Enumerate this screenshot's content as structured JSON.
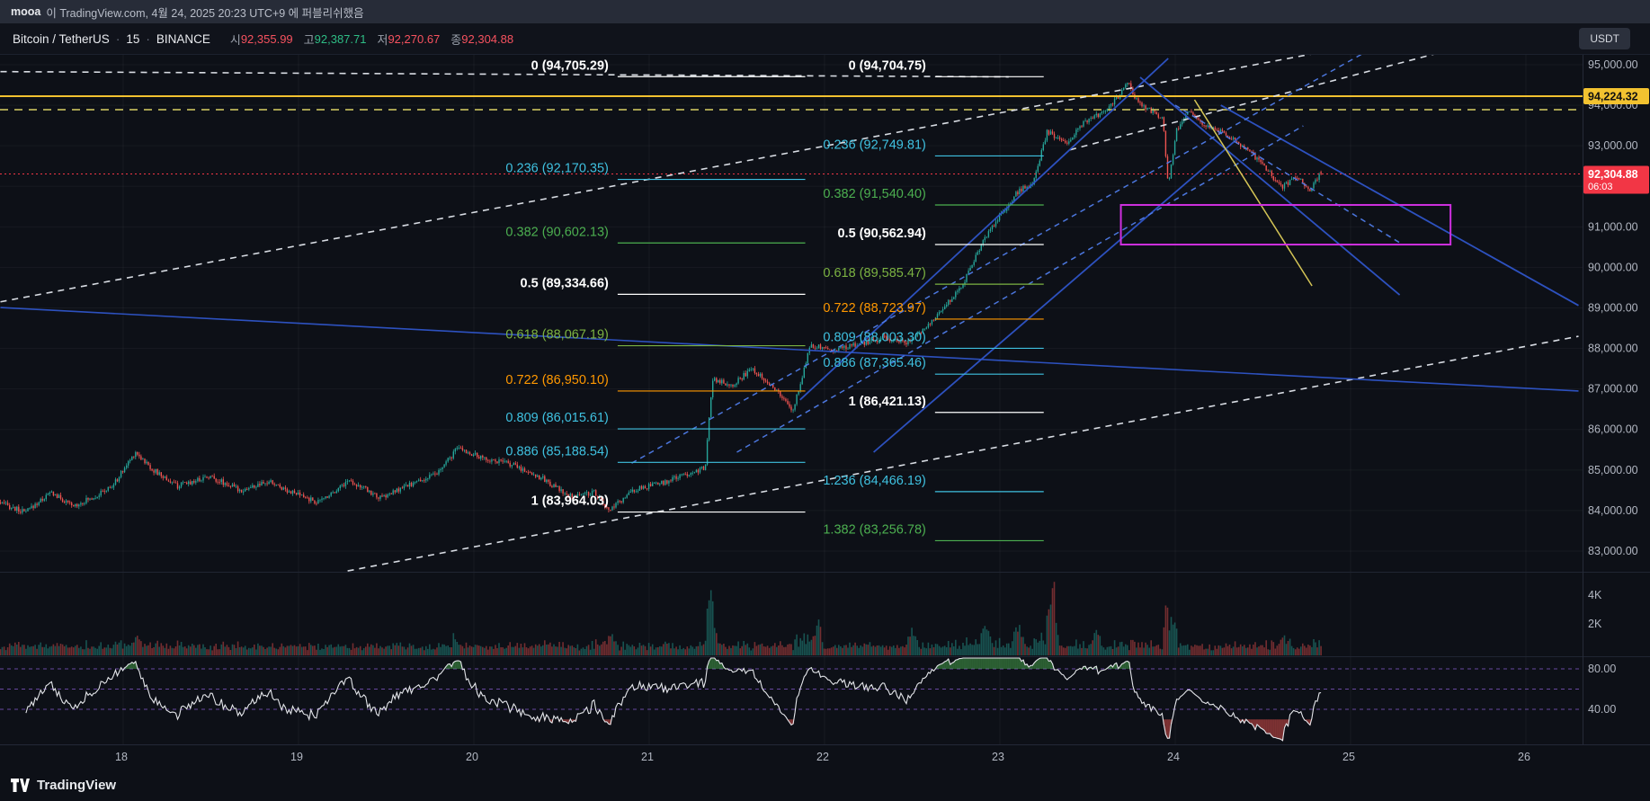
{
  "publish_bar": {
    "author": "mooa",
    "text": "이 TradingView.com, 4월 24, 2025 20:23 UTC+9 에 퍼블리쉬했음"
  },
  "symbol_bar": {
    "title": "Bitcoin / TetherUS",
    "separator": "·",
    "interval": "15",
    "exchange": "BINANCE",
    "ohlc": [
      {
        "label": "시",
        "value": "92,355.99",
        "color": "#f7525f"
      },
      {
        "label": "고",
        "value": "92,387.71",
        "color": "#2ebd85"
      },
      {
        "label": "저",
        "value": "92,270.67",
        "color": "#f7525f"
      },
      {
        "label": "종",
        "value": "92,304.88",
        "color": "#f7525f"
      }
    ],
    "currency_button": "USDT"
  },
  "price_axis": {
    "labels": [
      {
        "text": "95,000.00",
        "value": 95000
      },
      {
        "text": "94,000.00",
        "value": 94000
      },
      {
        "text": "93,000.00",
        "value": 93000
      },
      {
        "text": "92,000.00",
        "value": 92000
      },
      {
        "text": "91,000.00",
        "value": 91000
      },
      {
        "text": "90,000.00",
        "value": 90000
      },
      {
        "text": "89,000.00",
        "value": 89000
      },
      {
        "text": "88,000.00",
        "value": 88000
      },
      {
        "text": "87,000.00",
        "value": 87000
      },
      {
        "text": "86,000.00",
        "value": 86000
      },
      {
        "text": "85,000.00",
        "value": 85000
      },
      {
        "text": "84,000.00",
        "value": 84000
      },
      {
        "text": "83,000.00",
        "value": 83000
      }
    ],
    "yellow_badge": {
      "text": "94,224.32",
      "value": 94224.32,
      "color": "#f2c230"
    },
    "price_badge": {
      "text": "92,304.88",
      "value": 92304.88,
      "countdown": "06:03",
      "color": "#f23645"
    },
    "volume_labels": [
      {
        "text": "4K",
        "value": 4000
      },
      {
        "text": "2K",
        "value": 2000
      }
    ],
    "osc_labels": [
      {
        "text": "80.00",
        "value": 80
      },
      {
        "text": "40.00",
        "value": 40
      }
    ]
  },
  "time_axis": {
    "labels": [
      "18",
      "19",
      "20",
      "21",
      "22",
      "23",
      "24",
      "25",
      "26"
    ]
  },
  "footer": {
    "brand": "TradingView"
  },
  "chart_data": {
    "type": "candlestick",
    "symbol": "Bitcoin / TetherUS",
    "exchange": "BINANCE",
    "interval_minutes": 15,
    "last": {
      "open": 92355.99,
      "high": 92387.71,
      "low": 92270.67,
      "close": 92304.88
    },
    "x_range_days": [
      17.3,
      26.32
    ],
    "candles_end_day": 24.84,
    "price_axis_range": [
      82490,
      95244
    ],
    "anchors": [
      [
        17.3,
        84200
      ],
      [
        17.45,
        83950
      ],
      [
        17.6,
        84450
      ],
      [
        17.72,
        84100
      ],
      [
        17.85,
        84350
      ],
      [
        17.95,
        84600
      ],
      [
        18.08,
        85450
      ],
      [
        18.18,
        85000
      ],
      [
        18.32,
        84600
      ],
      [
        18.5,
        84850
      ],
      [
        18.68,
        84500
      ],
      [
        18.85,
        84700
      ],
      [
        19.0,
        84400
      ],
      [
        19.12,
        84200
      ],
      [
        19.3,
        84750
      ],
      [
        19.48,
        84300
      ],
      [
        19.65,
        84650
      ],
      [
        19.8,
        84900
      ],
      [
        19.92,
        85550
      ],
      [
        20.05,
        85300
      ],
      [
        20.22,
        85150
      ],
      [
        20.4,
        84800
      ],
      [
        20.55,
        84350
      ],
      [
        20.7,
        84450
      ],
      [
        20.78,
        83980
      ],
      [
        20.92,
        84500
      ],
      [
        21.1,
        84700
      ],
      [
        21.25,
        84950
      ],
      [
        21.33,
        85050
      ],
      [
        21.37,
        87250
      ],
      [
        21.48,
        87100
      ],
      [
        21.6,
        87500
      ],
      [
        21.72,
        87050
      ],
      [
        21.83,
        86450
      ],
      [
        21.93,
        88100
      ],
      [
        22.05,
        87950
      ],
      [
        22.2,
        88100
      ],
      [
        22.35,
        88250
      ],
      [
        22.5,
        88150
      ],
      [
        22.65,
        88800
      ],
      [
        22.8,
        89600
      ],
      [
        22.92,
        90700
      ],
      [
        23.02,
        91350
      ],
      [
        23.12,
        91900
      ],
      [
        23.2,
        92050
      ],
      [
        23.28,
        93350
      ],
      [
        23.38,
        93050
      ],
      [
        23.5,
        93600
      ],
      [
        23.62,
        93850
      ],
      [
        23.7,
        94300
      ],
      [
        23.74,
        94550
      ],
      [
        23.8,
        94050
      ],
      [
        23.88,
        93850
      ],
      [
        23.94,
        93650
      ],
      [
        23.97,
        92050
      ],
      [
        24.02,
        93400
      ],
      [
        24.08,
        93850
      ],
      [
        24.18,
        93500
      ],
      [
        24.3,
        93280
      ],
      [
        24.42,
        92900
      ],
      [
        24.52,
        92500
      ],
      [
        24.62,
        91950
      ],
      [
        24.7,
        92250
      ],
      [
        24.78,
        91900
      ],
      [
        24.84,
        92305
      ]
    ],
    "volume_spikes": [
      [
        18.08,
        700
      ],
      [
        19.9,
        600
      ],
      [
        20.78,
        1000
      ],
      [
        21.36,
        2600
      ],
      [
        21.96,
        2100
      ],
      [
        22.5,
        1400
      ],
      [
        22.92,
        1900
      ],
      [
        23.1,
        1700
      ],
      [
        23.3,
        6500
      ],
      [
        23.55,
        1300
      ],
      [
        23.97,
        1500
      ],
      [
        24.62,
        800
      ]
    ],
    "fib_sets": [
      {
        "name": "left",
        "line_x_days": [
          20.82,
          21.89
        ],
        "levels": [
          {
            "level": "0",
            "price": "94,705.29",
            "value": 94705.29,
            "color": "#ffffff",
            "bold": true
          },
          {
            "level": "0.236",
            "price": "92,170.35",
            "value": 92170.35,
            "color": "#3fc1e0",
            "bold": false
          },
          {
            "level": "0.382",
            "price": "90,602.13",
            "value": 90602.13,
            "color": "#4caf50",
            "bold": false
          },
          {
            "level": "0.5",
            "price": "89,334.66",
            "value": 89334.66,
            "color": "#ffffff",
            "bold": true
          },
          {
            "level": "0.618",
            "price": "88,067.19",
            "value": 88067.19,
            "color": "#7cb342",
            "bold": false
          },
          {
            "level": "0.722",
            "price": "86,950.10",
            "value": 86950.1,
            "color": "#ff9800",
            "bold": false
          },
          {
            "level": "0.809",
            "price": "86,015.61",
            "value": 86015.61,
            "color": "#3fc1e0",
            "bold": false
          },
          {
            "level": "0.886",
            "price": "85,188.54",
            "value": 85188.54,
            "color": "#3fc1e0",
            "bold": false
          },
          {
            "level": "1",
            "price": "83,964.03",
            "value": 83964.03,
            "color": "#ffffff",
            "bold": true
          }
        ]
      },
      {
        "name": "right",
        "line_x_days": [
          22.63,
          23.25
        ],
        "levels": [
          {
            "level": "0",
            "price": "94,704.75",
            "value": 94704.75,
            "color": "#ffffff",
            "bold": true
          },
          {
            "level": "0.236",
            "price": "92,749.81",
            "value": 92749.81,
            "color": "#3fc1e0",
            "bold": false
          },
          {
            "level": "0.382",
            "price": "91,540.40",
            "value": 91540.4,
            "color": "#4caf50",
            "bold": false
          },
          {
            "level": "0.5",
            "price": "90,562.94",
            "value": 90562.94,
            "color": "#ffffff",
            "bold": true
          },
          {
            "level": "0.618",
            "price": "89,585.47",
            "value": 89585.47,
            "color": "#7cb342",
            "bold": false
          },
          {
            "level": "0.722",
            "price": "88,723.97",
            "value": 88723.97,
            "color": "#ff9800",
            "bold": false
          },
          {
            "level": "0.809",
            "price": "88,003.30",
            "value": 88003.3,
            "color": "#3fc1e0",
            "bold": false
          },
          {
            "level": "0.886",
            "price": "87,365.46",
            "value": 87365.46,
            "color": "#3fc1e0",
            "bold": false
          },
          {
            "level": "1",
            "price": "86,421.13",
            "value": 86421.13,
            "color": "#ffffff",
            "bold": true
          },
          {
            "level": "1.236",
            "price": "84,466.19",
            "value": 84466.19,
            "color": "#3fc1e0",
            "bold": false
          },
          {
            "level": "1.382",
            "price": "83,256.78",
            "value": 83256.78,
            "color": "#4caf50",
            "bold": false
          }
        ]
      }
    ],
    "horizontal_lines": [
      {
        "price": 94224.32,
        "color": "#f2c230",
        "w": 2,
        "dash": null
      },
      {
        "price": 93890,
        "color": "#d9cf63",
        "w": 1.5,
        "dash": "9,7"
      },
      {
        "price": 92304.88,
        "color": "#f23645",
        "w": 1,
        "dash": "2,3"
      }
    ],
    "trendlines": [
      {
        "d1": 17.3,
        "p1": 89150,
        "d2": 26.35,
        "p2": 96550,
        "color": "#e3e7ee",
        "dash": "7,6",
        "w": 1.6
      },
      {
        "d1": 23.4,
        "p1": 92900,
        "d2": 26.3,
        "p2": 96200,
        "color": "#e3e7ee",
        "dash": "7,6",
        "w": 1.6
      },
      {
        "d1": 19.28,
        "p1": 82510,
        "d2": 26.3,
        "p2": 88300,
        "color": "#e3e7ee",
        "dash": "7,6",
        "w": 1.6
      },
      {
        "d1": 17.3,
        "p1": 94830,
        "d2": 23.05,
        "p2": 94700,
        "color": "#e3e7ee",
        "dash": "7,6",
        "w": 1.6
      },
      {
        "d1": 17.3,
        "p1": 89010,
        "d2": 26.3,
        "p2": 86950,
        "color": "#2f55c9",
        "w": 1.6
      },
      {
        "d1": 21.86,
        "p1": 86730,
        "d2": 23.96,
        "p2": 95155,
        "color": "#2f55c9",
        "w": 1.8
      },
      {
        "d1": 22.28,
        "p1": 85440,
        "d2": 24.37,
        "p2": 93230,
        "color": "#2f55c9",
        "w": 1.8
      },
      {
        "d1": 23.8,
        "p1": 94690,
        "d2": 25.28,
        "p2": 89320,
        "color": "#2f55c9",
        "w": 1.8
      },
      {
        "d1": 24.26,
        "p1": 94000,
        "d2": 26.3,
        "p2": 89060,
        "color": "#2f55c9",
        "w": 1.8
      },
      {
        "d1": 20.9,
        "p1": 85170,
        "d2": 25.34,
        "p2": 95930,
        "color": "#4f7ce8",
        "dash": "6,5",
        "w": 1.5
      },
      {
        "d1": 21.5,
        "p1": 85440,
        "d2": 24.73,
        "p2": 93490,
        "color": "#4f7ce8",
        "dash": "6,5",
        "w": 1.5
      },
      {
        "d1": 24.0,
        "p1": 94002,
        "d2": 25.28,
        "p2": 90609,
        "color": "#4f7ce8",
        "dash": "6,5",
        "w": 1.5
      },
      {
        "d1": 24.11,
        "p1": 94135,
        "d2": 24.78,
        "p2": 89544,
        "color": "#e0cf5a",
        "w": 1.5
      }
    ],
    "rectangle": {
      "d1": 23.69,
      "p1": 91540.4,
      "d2": 25.57,
      "p2": 90562.94,
      "color": "#cf2fe0"
    },
    "oscillator": {
      "bands": [
        80,
        60,
        40
      ],
      "labeled_bands": [
        80,
        40
      ],
      "line_color": "#e4e6ea",
      "band_color": "#7e57c2"
    }
  }
}
